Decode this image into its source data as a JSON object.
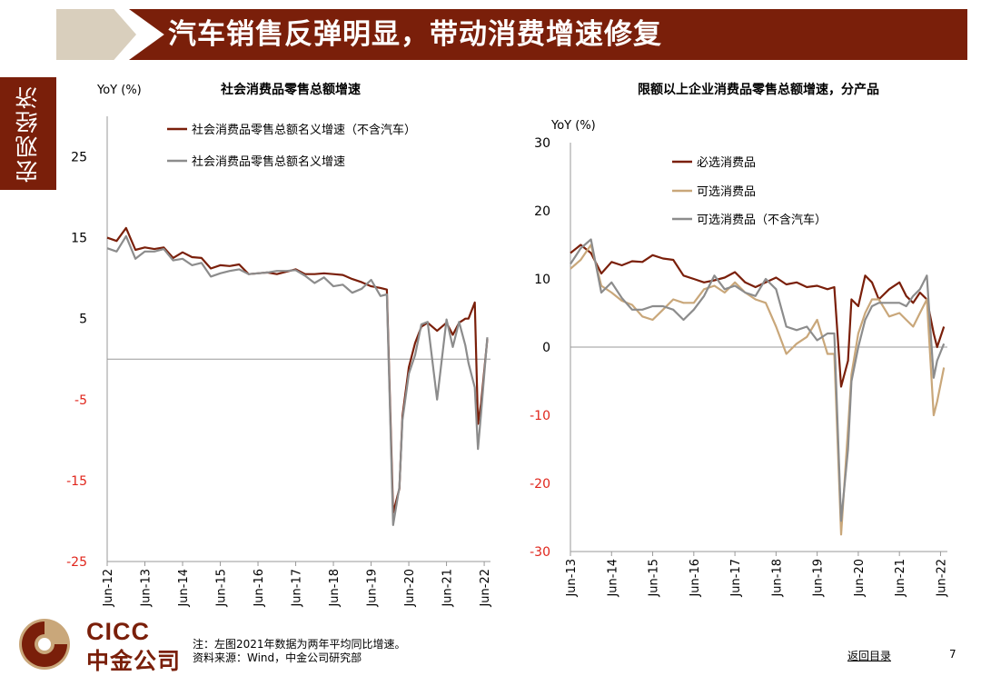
{
  "header": {
    "title": "汽车销售反弹明显，带动消费增速修复"
  },
  "side_tab": {
    "label": "宏观经济"
  },
  "logo": {
    "en": "CICC",
    "cn": "中金公司"
  },
  "footer": {
    "note": "注：左图2021年数据为两年平均同比增速。",
    "source": "资料来源：Wind，中金公司研究部",
    "back_link": "返回目录",
    "page_number": "7"
  },
  "colors": {
    "brand": "#7a1f0a",
    "tan": "#c9a77a",
    "gray": "#8c8c8c",
    "negative": "#e0251b"
  },
  "chart_data": [
    {
      "type": "line",
      "title": "社会消费品零售总额增速",
      "ylabel": "YoY (%)",
      "ylim": [
        -25,
        30
      ],
      "yticks": [
        25,
        15,
        5,
        -5,
        -15,
        -25
      ],
      "xticks": [
        "Jun-12",
        "Jun-13",
        "Jun-14",
        "Jun-15",
        "Jun-16",
        "Jun-17",
        "Jun-18",
        "Jun-19",
        "Jun-20",
        "Jun-21",
        "Jun-22"
      ],
      "xlim": [
        "2012-06",
        "2022-08"
      ],
      "legend_position": "top",
      "series": [
        {
          "name": "社会消费品零售总额名义增速（不含汽车）",
          "color": "#7a1f0a",
          "points": [
            [
              "2012-06",
              15.0
            ],
            [
              "2012-09",
              14.6
            ],
            [
              "2012-12",
              16.2
            ],
            [
              "2013-03",
              13.5
            ],
            [
              "2013-06",
              13.8
            ],
            [
              "2013-09",
              13.6
            ],
            [
              "2013-12",
              13.8
            ],
            [
              "2014-03",
              12.5
            ],
            [
              "2014-06",
              13.2
            ],
            [
              "2014-09",
              12.6
            ],
            [
              "2014-12",
              12.5
            ],
            [
              "2015-03",
              11.2
            ],
            [
              "2015-06",
              11.6
            ],
            [
              "2015-09",
              11.5
            ],
            [
              "2015-12",
              11.7
            ],
            [
              "2016-03",
              10.5
            ],
            [
              "2016-06",
              10.6
            ],
            [
              "2016-09",
              10.7
            ],
            [
              "2016-12",
              10.5
            ],
            [
              "2017-03",
              10.8
            ],
            [
              "2017-06",
              11.1
            ],
            [
              "2017-09",
              10.5
            ],
            [
              "2017-12",
              10.5
            ],
            [
              "2018-03",
              10.6
            ],
            [
              "2018-06",
              10.5
            ],
            [
              "2018-09",
              10.4
            ],
            [
              "2018-12",
              9.9
            ],
            [
              "2019-03",
              9.5
            ],
            [
              "2019-06",
              9.0
            ],
            [
              "2019-09",
              8.8
            ],
            [
              "2019-11",
              8.6
            ],
            [
              "2020-01",
              -19.0
            ],
            [
              "2020-03",
              -16.0
            ],
            [
              "2020-04",
              -7.0
            ],
            [
              "2020-06",
              -1.0
            ],
            [
              "2020-08",
              2.0
            ],
            [
              "2020-10",
              4.0
            ],
            [
              "2020-12",
              4.5
            ],
            [
              "2021-03",
              3.5
            ],
            [
              "2021-06",
              4.5
            ],
            [
              "2021-08",
              3.0
            ],
            [
              "2021-10",
              4.5
            ],
            [
              "2021-12",
              5.0
            ],
            [
              "2022-01",
              5.0
            ],
            [
              "2022-03",
              7.0
            ],
            [
              "2022-04",
              -8.0
            ],
            [
              "2022-05",
              -5.5
            ],
            [
              "2022-07",
              2.5
            ]
          ]
        },
        {
          "name": "社会消费品零售总额名义增速",
          "color": "#8c8c8c",
          "points": [
            [
              "2012-06",
              13.7
            ],
            [
              "2012-09",
              13.3
            ],
            [
              "2012-12",
              15.2
            ],
            [
              "2013-03",
              12.4
            ],
            [
              "2013-06",
              13.3
            ],
            [
              "2013-09",
              13.3
            ],
            [
              "2013-12",
              13.6
            ],
            [
              "2014-03",
              12.2
            ],
            [
              "2014-06",
              12.4
            ],
            [
              "2014-09",
              11.6
            ],
            [
              "2014-12",
              11.9
            ],
            [
              "2015-03",
              10.2
            ],
            [
              "2015-06",
              10.6
            ],
            [
              "2015-09",
              10.9
            ],
            [
              "2015-12",
              11.1
            ],
            [
              "2016-03",
              10.5
            ],
            [
              "2016-06",
              10.6
            ],
            [
              "2016-09",
              10.7
            ],
            [
              "2016-12",
              10.9
            ],
            [
              "2017-03",
              10.9
            ],
            [
              "2017-06",
              11.0
            ],
            [
              "2017-09",
              10.3
            ],
            [
              "2017-12",
              9.4
            ],
            [
              "2018-03",
              10.1
            ],
            [
              "2018-06",
              9.0
            ],
            [
              "2018-09",
              9.2
            ],
            [
              "2018-12",
              8.2
            ],
            [
              "2019-03",
              8.7
            ],
            [
              "2019-06",
              9.8
            ],
            [
              "2019-09",
              7.8
            ],
            [
              "2019-11",
              8.0
            ],
            [
              "2020-01",
              -20.5
            ],
            [
              "2020-03",
              -15.8
            ],
            [
              "2020-04",
              -7.5
            ],
            [
              "2020-06",
              -1.8
            ],
            [
              "2020-08",
              0.5
            ],
            [
              "2020-10",
              4.3
            ],
            [
              "2020-12",
              4.6
            ],
            [
              "2021-03",
              -5.0
            ],
            [
              "2021-06",
              4.9
            ],
            [
              "2021-08",
              1.5
            ],
            [
              "2021-10",
              4.6
            ],
            [
              "2021-12",
              1.7
            ],
            [
              "2022-01",
              -0.5
            ],
            [
              "2022-03",
              -3.5
            ],
            [
              "2022-04",
              -11.1
            ],
            [
              "2022-05",
              -6.7
            ],
            [
              "2022-07",
              2.7
            ]
          ]
        }
      ]
    },
    {
      "type": "line",
      "title": "限额以上企业消费品零售总额增速，分产品",
      "ylabel": "YoY (%)",
      "ylim": [
        -30,
        30
      ],
      "yticks": [
        30,
        20,
        10,
        0,
        -10,
        -20,
        -30
      ],
      "xticks": [
        "Jun-13",
        "Jun-14",
        "Jun-15",
        "Jun-16",
        "Jun-17",
        "Jun-18",
        "Jun-19",
        "Jun-20",
        "Jun-21",
        "Jun-22"
      ],
      "xlim": [
        "2013-06",
        "2022-08"
      ],
      "legend_position": "top-left",
      "series": [
        {
          "name": "必选消费品",
          "color": "#7a1f0a",
          "points": [
            [
              "2013-06",
              13.8
            ],
            [
              "2013-09",
              15.0
            ],
            [
              "2013-12",
              13.8
            ],
            [
              "2014-03",
              10.8
            ],
            [
              "2014-06",
              12.5
            ],
            [
              "2014-09",
              12.0
            ],
            [
              "2014-12",
              12.6
            ],
            [
              "2015-03",
              12.5
            ],
            [
              "2015-06",
              13.5
            ],
            [
              "2015-09",
              13.0
            ],
            [
              "2015-12",
              12.8
            ],
            [
              "2016-03",
              10.5
            ],
            [
              "2016-06",
              10.0
            ],
            [
              "2016-09",
              9.5
            ],
            [
              "2016-12",
              9.8
            ],
            [
              "2017-03",
              10.2
            ],
            [
              "2017-06",
              11.0
            ],
            [
              "2017-09",
              9.5
            ],
            [
              "2017-12",
              8.8
            ],
            [
              "2018-03",
              9.5
            ],
            [
              "2018-06",
              10.2
            ],
            [
              "2018-09",
              9.2
            ],
            [
              "2018-12",
              9.5
            ],
            [
              "2019-03",
              8.8
            ],
            [
              "2019-06",
              9.0
            ],
            [
              "2019-09",
              8.5
            ],
            [
              "2019-11",
              8.8
            ],
            [
              "2020-01",
              -5.8
            ],
            [
              "2020-03",
              -2.0
            ],
            [
              "2020-04",
              7.0
            ],
            [
              "2020-06",
              6.0
            ],
            [
              "2020-08",
              10.5
            ],
            [
              "2020-10",
              9.5
            ],
            [
              "2020-12",
              7.0
            ],
            [
              "2021-03",
              8.5
            ],
            [
              "2021-06",
              9.5
            ],
            [
              "2021-08",
              7.5
            ],
            [
              "2021-10",
              6.5
            ],
            [
              "2021-12",
              8.0
            ],
            [
              "2022-02",
              7.0
            ],
            [
              "2022-04",
              2.0
            ],
            [
              "2022-05",
              0.0
            ],
            [
              "2022-07",
              3.0
            ]
          ]
        },
        {
          "name": "可选消费品",
          "color": "#c9a77a",
          "points": [
            [
              "2013-06",
              11.5
            ],
            [
              "2013-09",
              12.8
            ],
            [
              "2013-12",
              15.0
            ],
            [
              "2014-03",
              9.0
            ],
            [
              "2014-06",
              8.0
            ],
            [
              "2014-09",
              6.8
            ],
            [
              "2014-12",
              6.2
            ],
            [
              "2015-03",
              4.5
            ],
            [
              "2015-06",
              4.0
            ],
            [
              "2015-09",
              5.5
            ],
            [
              "2015-12",
              7.0
            ],
            [
              "2016-03",
              6.5
            ],
            [
              "2016-06",
              6.5
            ],
            [
              "2016-09",
              8.5
            ],
            [
              "2016-12",
              9.0
            ],
            [
              "2017-03",
              8.0
            ],
            [
              "2017-06",
              9.5
            ],
            [
              "2017-09",
              8.0
            ],
            [
              "2017-12",
              7.0
            ],
            [
              "2018-03",
              6.5
            ],
            [
              "2018-06",
              3.0
            ],
            [
              "2018-09",
              -1.0
            ],
            [
              "2018-12",
              0.5
            ],
            [
              "2019-03",
              1.5
            ],
            [
              "2019-06",
              4.0
            ],
            [
              "2019-09",
              -1.0
            ],
            [
              "2019-11",
              -1.0
            ],
            [
              "2020-01",
              -27.5
            ],
            [
              "2020-03",
              -12.0
            ],
            [
              "2020-04",
              -4.0
            ],
            [
              "2020-06",
              2.0
            ],
            [
              "2020-08",
              5.0
            ],
            [
              "2020-10",
              7.0
            ],
            [
              "2020-12",
              7.0
            ],
            [
              "2021-03",
              4.5
            ],
            [
              "2021-06",
              5.0
            ],
            [
              "2021-08",
              4.0
            ],
            [
              "2021-10",
              3.0
            ],
            [
              "2021-12",
              5.0
            ],
            [
              "2022-02",
              7.0
            ],
            [
              "2022-04",
              -10.0
            ],
            [
              "2022-05",
              -8.0
            ],
            [
              "2022-07",
              -3.0
            ]
          ]
        },
        {
          "name": "可选消费品（不含汽车）",
          "color": "#8c8c8c",
          "points": [
            [
              "2013-06",
              12.2
            ],
            [
              "2013-09",
              14.5
            ],
            [
              "2013-12",
              15.8
            ],
            [
              "2014-03",
              8.0
            ],
            [
              "2014-06",
              9.5
            ],
            [
              "2014-09",
              7.2
            ],
            [
              "2014-12",
              5.5
            ],
            [
              "2015-03",
              5.5
            ],
            [
              "2015-06",
              6.0
            ],
            [
              "2015-09",
              6.0
            ],
            [
              "2015-12",
              5.5
            ],
            [
              "2016-03",
              4.0
            ],
            [
              "2016-06",
              5.5
            ],
            [
              "2016-09",
              7.5
            ],
            [
              "2016-12",
              10.5
            ],
            [
              "2017-03",
              8.5
            ],
            [
              "2017-06",
              9.0
            ],
            [
              "2017-09",
              8.0
            ],
            [
              "2017-12",
              7.5
            ],
            [
              "2018-03",
              10.0
            ],
            [
              "2018-06",
              8.5
            ],
            [
              "2018-09",
              3.0
            ],
            [
              "2018-12",
              2.5
            ],
            [
              "2019-03",
              3.0
            ],
            [
              "2019-06",
              1.0
            ],
            [
              "2019-09",
              2.0
            ],
            [
              "2019-11",
              2.0
            ],
            [
              "2020-01",
              -25.5
            ],
            [
              "2020-03",
              -15.0
            ],
            [
              "2020-04",
              -5.0
            ],
            [
              "2020-06",
              0.0
            ],
            [
              "2020-08",
              4.0
            ],
            [
              "2020-10",
              6.0
            ],
            [
              "2020-12",
              6.5
            ],
            [
              "2021-03",
              6.5
            ],
            [
              "2021-06",
              6.5
            ],
            [
              "2021-08",
              6.0
            ],
            [
              "2021-10",
              7.5
            ],
            [
              "2021-12",
              8.5
            ],
            [
              "2022-02",
              10.5
            ],
            [
              "2022-04",
              -4.5
            ],
            [
              "2022-05",
              -2.0
            ],
            [
              "2022-07",
              0.5
            ]
          ]
        }
      ]
    }
  ]
}
